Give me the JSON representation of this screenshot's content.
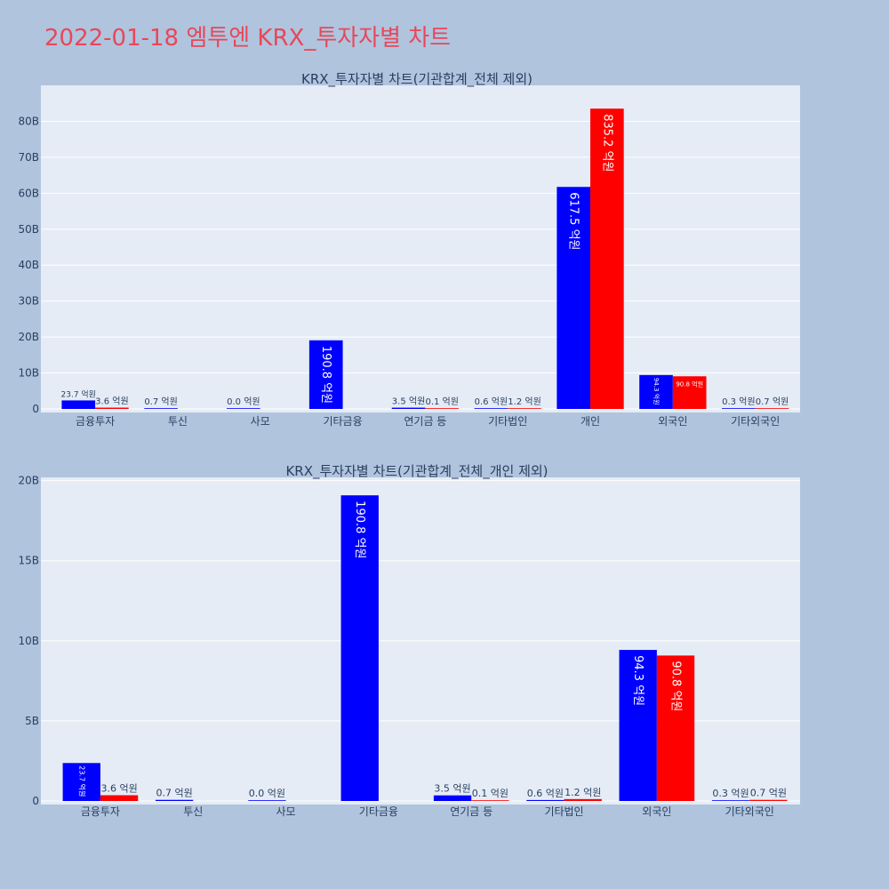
{
  "page": {
    "title": "2022-01-18 엠투엔 KRX_투자자별 차트"
  },
  "colors": {
    "background": "#b0c4de",
    "plot_bg": "#e5ecf6",
    "title": "#e8475a",
    "buy": "#0000ff",
    "sell": "#ff0000",
    "text": "#2a3f5f"
  },
  "chart_data": [
    {
      "type": "bar",
      "title": "KRX_투자자별 차트(기관합계_전체 제외)",
      "categories": [
        "금융투자",
        "투신",
        "사모",
        "기타금융",
        "연기금 등",
        "기타법인",
        "개인",
        "외국인",
        "기타외국인"
      ],
      "series": [
        {
          "color": "#0000ff",
          "values": [
            2.37,
            0.07,
            0.0,
            19.08,
            0.35,
            0.06,
            61.75,
            9.43,
            0.03
          ],
          "labels": [
            "23.7 억원",
            "0.7 억원",
            "0.0 억원",
            "190.8 억원",
            "3.5 억원",
            "0.6 억원",
            "617.5 억원",
            "94.3 억원",
            "0.3 억원"
          ]
        },
        {
          "color": "#ff0000",
          "values": [
            0.36,
            null,
            null,
            null,
            0.01,
            0.12,
            83.52,
            9.08,
            0.07
          ],
          "labels": [
            "3.6 억원",
            "",
            "",
            "",
            "0.1 억원",
            "1.2 억원",
            "835.2 억원",
            "90.8 억원",
            "0.7 억원"
          ]
        }
      ],
      "ylim": [
        0,
        90
      ],
      "yticks": [
        0,
        10,
        20,
        30,
        40,
        50,
        60,
        70,
        80
      ],
      "ytick_labels": [
        "0",
        "10B",
        "20B",
        "30B",
        "40B",
        "50B",
        "60B",
        "70B",
        "80B"
      ],
      "grid": true,
      "xlabel": "",
      "ylabel": ""
    },
    {
      "type": "bar",
      "title": "KRX_투자자별 차트(기관합계_전체_개인 제외)",
      "categories": [
        "금융투자",
        "투신",
        "사모",
        "기타금융",
        "연기금 등",
        "기타법인",
        "외국인",
        "기타외국인"
      ],
      "series": [
        {
          "color": "#0000ff",
          "values": [
            2.37,
            0.07,
            0.0,
            19.08,
            0.35,
            0.06,
            9.43,
            0.03
          ],
          "labels": [
            "23.7 억원",
            "0.7 억원",
            "0.0 억원",
            "190.8 억원",
            "3.5 억원",
            "0.6 억원",
            "94.3 억원",
            "0.3 억원"
          ]
        },
        {
          "color": "#ff0000",
          "values": [
            0.36,
            null,
            null,
            null,
            0.01,
            0.12,
            9.08,
            0.07
          ],
          "labels": [
            "3.6 억원",
            "",
            "",
            "",
            "0.1 억원",
            "1.2 억원",
            "90.8 억원",
            "0.7 억원"
          ]
        }
      ],
      "ylim": [
        0,
        20.2
      ],
      "yticks": [
        0,
        5,
        10,
        15,
        20
      ],
      "ytick_labels": [
        "0",
        "5B",
        "10B",
        "15B",
        "20B"
      ],
      "grid": true,
      "xlabel": "",
      "ylabel": ""
    }
  ]
}
